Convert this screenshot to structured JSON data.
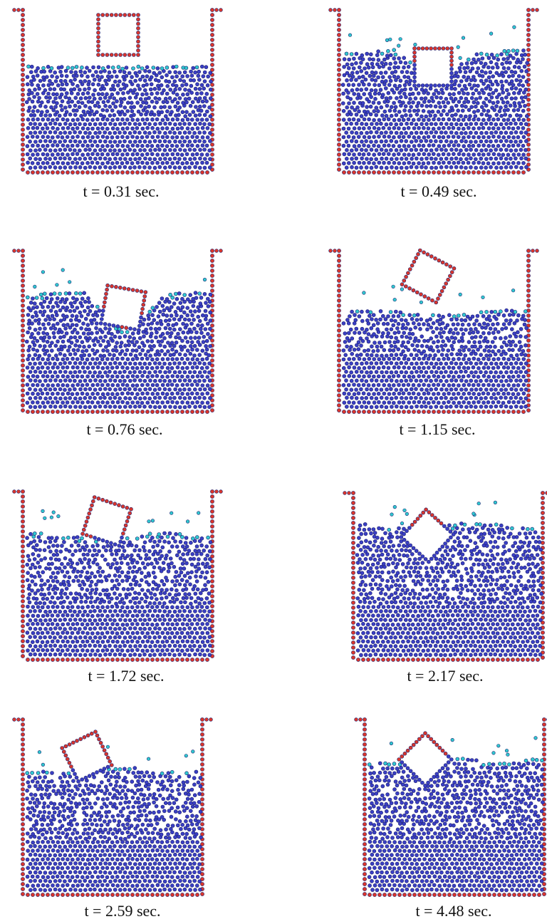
{
  "figure": {
    "panels": [
      {
        "caption": "t = 0.31 sec.",
        "rotation_deg": 0,
        "block_state": "entering"
      },
      {
        "caption": "t = 0.49 sec.",
        "rotation_deg": 0,
        "block_state": "submerged-splash"
      },
      {
        "caption": "t = 0.76 sec.",
        "rotation_deg": 10,
        "block_state": "submerged"
      },
      {
        "caption": "t = 1.15 sec.",
        "rotation_deg": 28,
        "block_state": "ejected"
      },
      {
        "caption": "t = 1.72 sec.",
        "rotation_deg": 18,
        "block_state": "floating"
      },
      {
        "caption": "t = 2.17 sec.",
        "rotation_deg": 42,
        "block_state": "floating"
      },
      {
        "caption": "t = 2.59 sec.",
        "rotation_deg": -26,
        "block_state": "floating"
      },
      {
        "caption": "t = 4.48 sec.",
        "rotation_deg": 45,
        "block_state": "floating"
      }
    ],
    "colors": {
      "wall_particle": "#d9362b",
      "fluid_particle": "#3a3fc4",
      "surface_particle": "#2fc9cf",
      "particle_outline": "#1e2170"
    }
  }
}
